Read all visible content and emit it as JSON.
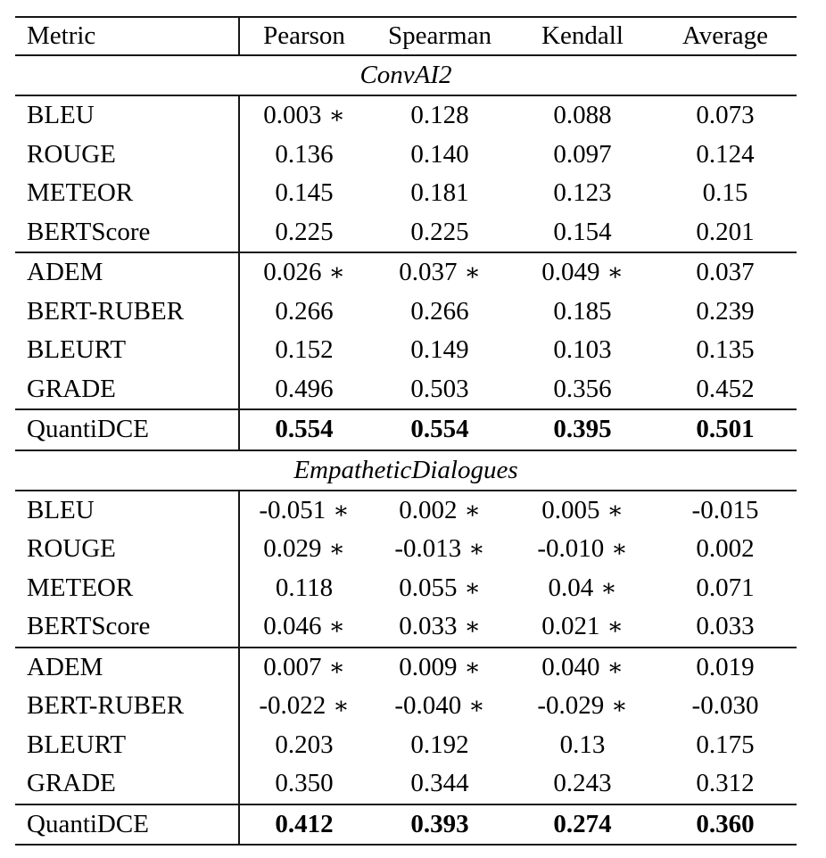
{
  "style": {
    "background": "#ffffff",
    "text_color": "#000000",
    "rule_color": "#161616"
  },
  "table": {
    "star_symbol": "∗",
    "star_meaning": "significance-marker",
    "header": {
      "metric": "Metric",
      "columns": [
        "Pearson",
        "Spearman",
        "Kendall",
        "Average"
      ]
    },
    "sections": [
      {
        "title": "ConvAI2",
        "groups": [
          {
            "rows": [
              {
                "metric": "BLEU",
                "values": [
                  {
                    "v": "0.003",
                    "star": true
                  },
                  {
                    "v": "0.128"
                  },
                  {
                    "v": "0.088"
                  },
                  {
                    "v": "0.073"
                  }
                ]
              },
              {
                "metric": "ROUGE",
                "values": [
                  {
                    "v": "0.136"
                  },
                  {
                    "v": "0.140"
                  },
                  {
                    "v": "0.097"
                  },
                  {
                    "v": "0.124"
                  }
                ]
              },
              {
                "metric": "METEOR",
                "values": [
                  {
                    "v": "0.145"
                  },
                  {
                    "v": "0.181"
                  },
                  {
                    "v": "0.123"
                  },
                  {
                    "v": "0.15"
                  }
                ]
              },
              {
                "metric": "BERTScore",
                "values": [
                  {
                    "v": "0.225"
                  },
                  {
                    "v": "0.225"
                  },
                  {
                    "v": "0.154"
                  },
                  {
                    "v": "0.201"
                  }
                ]
              }
            ]
          },
          {
            "rows": [
              {
                "metric": "ADEM",
                "values": [
                  {
                    "v": "0.026",
                    "star": true
                  },
                  {
                    "v": "0.037",
                    "star": true
                  },
                  {
                    "v": "0.049",
                    "star": true
                  },
                  {
                    "v": "0.037"
                  }
                ]
              },
              {
                "metric": "BERT-RUBER",
                "values": [
                  {
                    "v": "0.266"
                  },
                  {
                    "v": "0.266"
                  },
                  {
                    "v": "0.185"
                  },
                  {
                    "v": "0.239"
                  }
                ]
              },
              {
                "metric": "BLEURT",
                "values": [
                  {
                    "v": "0.152"
                  },
                  {
                    "v": "0.149"
                  },
                  {
                    "v": "0.103"
                  },
                  {
                    "v": "0.135"
                  }
                ]
              },
              {
                "metric": "GRADE",
                "values": [
                  {
                    "v": "0.496"
                  },
                  {
                    "v": "0.503"
                  },
                  {
                    "v": "0.356"
                  },
                  {
                    "v": "0.452"
                  }
                ]
              }
            ]
          },
          {
            "rows": [
              {
                "metric": "QuantiDCE",
                "bold": true,
                "values": [
                  {
                    "v": "0.554"
                  },
                  {
                    "v": "0.554"
                  },
                  {
                    "v": "0.395"
                  },
                  {
                    "v": "0.501"
                  }
                ]
              }
            ]
          }
        ]
      },
      {
        "title": "EmpatheticDialogues",
        "groups": [
          {
            "rows": [
              {
                "metric": "BLEU",
                "values": [
                  {
                    "v": "-0.051",
                    "star": true
                  },
                  {
                    "v": "0.002",
                    "star": true
                  },
                  {
                    "v": "0.005",
                    "star": true
                  },
                  {
                    "v": "-0.015"
                  }
                ]
              },
              {
                "metric": "ROUGE",
                "values": [
                  {
                    "v": "0.029",
                    "star": true
                  },
                  {
                    "v": "-0.013",
                    "star": true
                  },
                  {
                    "v": "-0.010",
                    "star": true
                  },
                  {
                    "v": "0.002"
                  }
                ]
              },
              {
                "metric": "METEOR",
                "values": [
                  {
                    "v": "0.118"
                  },
                  {
                    "v": "0.055",
                    "star": true
                  },
                  {
                    "v": "0.04",
                    "star": true
                  },
                  {
                    "v": "0.071"
                  }
                ]
              },
              {
                "metric": "BERTScore",
                "values": [
                  {
                    "v": "0.046",
                    "star": true
                  },
                  {
                    "v": "0.033",
                    "star": true
                  },
                  {
                    "v": "0.021",
                    "star": true
                  },
                  {
                    "v": "0.033"
                  }
                ]
              }
            ]
          },
          {
            "rows": [
              {
                "metric": "ADEM",
                "values": [
                  {
                    "v": "0.007",
                    "star": true
                  },
                  {
                    "v": "0.009",
                    "star": true
                  },
                  {
                    "v": "0.040",
                    "star": true
                  },
                  {
                    "v": "0.019"
                  }
                ]
              },
              {
                "metric": "BERT-RUBER",
                "values": [
                  {
                    "v": "-0.022",
                    "star": true
                  },
                  {
                    "v": "-0.040",
                    "star": true
                  },
                  {
                    "v": "-0.029",
                    "star": true
                  },
                  {
                    "v": "-0.030"
                  }
                ]
              },
              {
                "metric": "BLEURT",
                "values": [
                  {
                    "v": "0.203"
                  },
                  {
                    "v": "0.192"
                  },
                  {
                    "v": "0.13"
                  },
                  {
                    "v": "0.175"
                  }
                ]
              },
              {
                "metric": "GRADE",
                "values": [
                  {
                    "v": "0.350"
                  },
                  {
                    "v": "0.344"
                  },
                  {
                    "v": "0.243"
                  },
                  {
                    "v": "0.312"
                  }
                ]
              }
            ]
          },
          {
            "rows": [
              {
                "metric": "QuantiDCE",
                "bold": true,
                "values": [
                  {
                    "v": "0.412"
                  },
                  {
                    "v": "0.393"
                  },
                  {
                    "v": "0.274"
                  },
                  {
                    "v": "0.360"
                  }
                ]
              }
            ]
          }
        ]
      }
    ]
  }
}
